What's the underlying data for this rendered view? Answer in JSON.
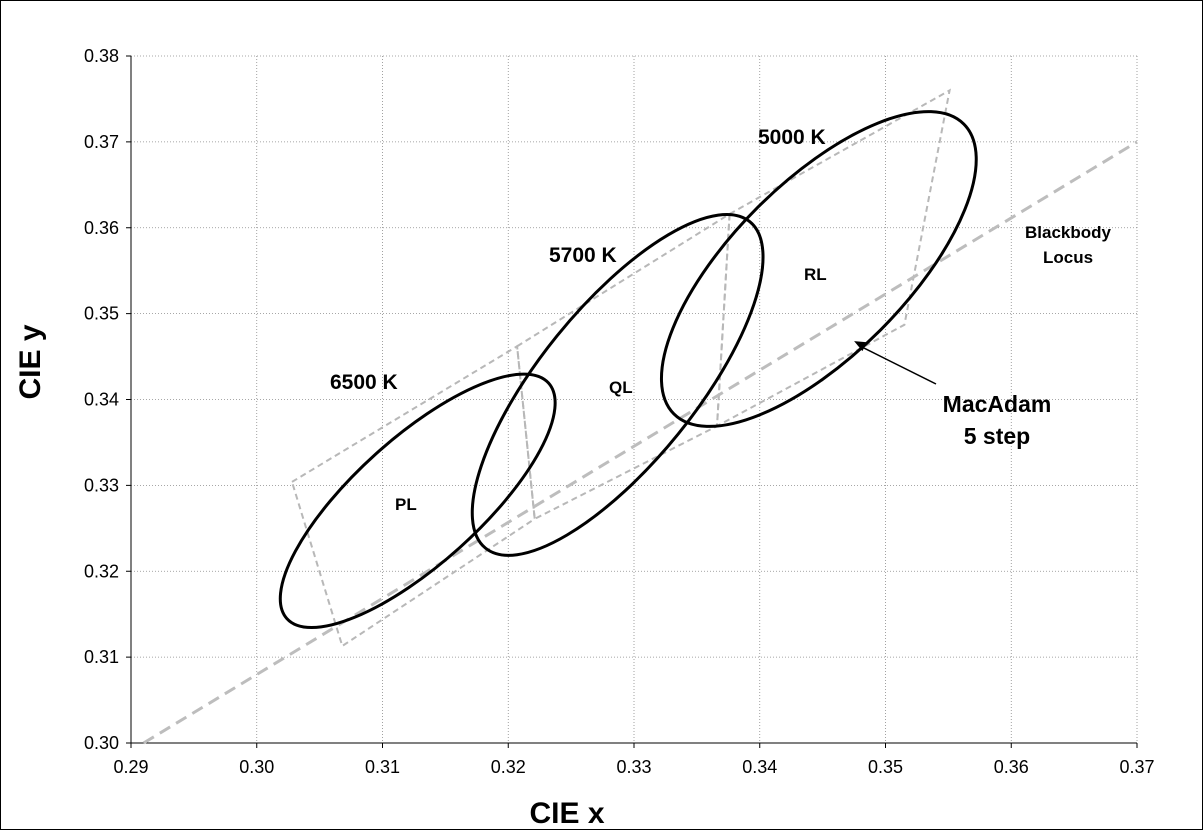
{
  "chart_data": {
    "type": "scatter",
    "xlabel": "CIE x",
    "ylabel": "CIE y",
    "xlim": [
      0.29,
      0.37
    ],
    "ylim": [
      0.3,
      0.38
    ],
    "x_ticks": [
      "0.29",
      "0.30",
      "0.31",
      "0.32",
      "0.33",
      "0.34",
      "0.35",
      "0.36",
      "0.37"
    ],
    "y_ticks": [
      "0.30",
      "0.31",
      "0.32",
      "0.33",
      "0.34",
      "0.35",
      "0.36",
      "0.37",
      "0.38"
    ],
    "grid": true,
    "blackbody_locus": {
      "label_line1": "Blackbody",
      "label_line2": "Locus",
      "points": [
        [
          0.291,
          0.3
        ],
        [
          0.37,
          0.37
        ]
      ]
    },
    "cct_quadrangles": [
      {
        "label": "6500 K",
        "corners": [
          [
            0.3028,
            0.3304
          ],
          [
            0.3207,
            0.3462
          ],
          [
            0.3221,
            0.3261
          ],
          [
            0.3068,
            0.3113
          ]
        ]
      },
      {
        "label": "5700 K",
        "corners": [
          [
            0.3207,
            0.3462
          ],
          [
            0.3376,
            0.3616
          ],
          [
            0.3366,
            0.3369
          ],
          [
            0.3221,
            0.3261
          ]
        ]
      },
      {
        "label": "5000 K",
        "corners": [
          [
            0.3376,
            0.3616
          ],
          [
            0.3551,
            0.376
          ],
          [
            0.3515,
            0.3487
          ],
          [
            0.3366,
            0.3369
          ]
        ]
      }
    ],
    "macadam_ellipses": [
      {
        "label": "PL",
        "center": [
          0.3128,
          0.3282
        ],
        "semi_major": 0.014,
        "semi_minor": 0.005,
        "angle_deg": 42
      },
      {
        "label": "QL",
        "center": [
          0.3287,
          0.3417
        ],
        "semi_major": 0.0167,
        "semi_minor": 0.0062,
        "angle_deg": 51
      },
      {
        "label": "RL",
        "center": [
          0.3447,
          0.3552
        ],
        "semi_major": 0.0163,
        "semi_minor": 0.0069,
        "angle_deg": 45
      }
    ],
    "annotation": {
      "text_line1": "MacAdam",
      "text_line2": "5 step",
      "arrow_to": [
        0.3475,
        0.3468
      ]
    }
  }
}
